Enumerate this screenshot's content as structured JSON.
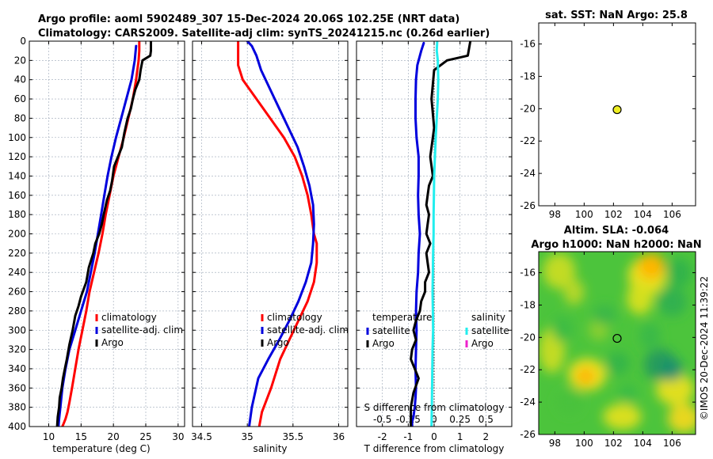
{
  "title": {
    "line1": "Argo profile: aoml 5902489_307 15-Dec-2024 20.06S 102.25E (NRT data)",
    "line2": "Climatology: CARS2009. Satellite-adj clim: synTS_20241215.nc (0.26d earlier)"
  },
  "colors": {
    "climatology": "#ff0000",
    "satellite": "#0000dd",
    "argo": "#000000",
    "sal_satellite": "#22eeee",
    "sal_argo": "#ee22cc",
    "dot": "#eeee22"
  },
  "footer": {
    "stamp": "©IMOS 20-Dec-2024 11:39:22"
  },
  "chart_data": [
    {
      "id": "temp",
      "type": "line",
      "xlabel": "temperature (deg C)",
      "ylabel": "depth (m)",
      "xlim": [
        7,
        31
      ],
      "ylim": [
        0,
        400
      ],
      "xticks": [
        10,
        15,
        20,
        25,
        30
      ],
      "yticks": [
        0,
        20,
        40,
        60,
        80,
        100,
        120,
        140,
        160,
        180,
        200,
        220,
        240,
        260,
        280,
        300,
        320,
        340,
        360,
        380,
        400
      ],
      "legend": [
        "climatology",
        "satellite-adj. clim",
        "Argo"
      ],
      "series": [
        {
          "name": "climatology",
          "color": "#ff0000",
          "x": [
            24.0,
            24.0,
            23.9,
            23.5,
            23.0,
            22.3,
            21.6,
            20.8,
            20.0,
            19.4,
            18.8,
            18.3,
            17.7,
            17.0,
            16.3,
            15.8,
            15.2,
            14.6,
            14.1,
            13.6,
            13.2,
            12.9,
            12.6,
            12.3,
            12.1
          ],
          "y": [
            0,
            10,
            20,
            40,
            60,
            80,
            100,
            120,
            140,
            160,
            180,
            200,
            220,
            240,
            260,
            280,
            300,
            320,
            340,
            360,
            375,
            385,
            392,
            397,
            400
          ]
        },
        {
          "name": "satellite-adj. clim",
          "color": "#0000dd",
          "x": [
            23.5,
            23.3,
            22.8,
            22.0,
            21.2,
            20.4,
            19.7,
            19.1,
            18.6,
            18.1,
            17.6,
            17.1,
            16.5,
            15.9,
            15.0,
            14.1,
            13.2,
            12.6,
            12.1,
            11.8,
            11.6,
            11.5
          ],
          "y": [
            5,
            20,
            40,
            60,
            80,
            100,
            120,
            140,
            160,
            180,
            200,
            220,
            240,
            260,
            280,
            300,
            320,
            340,
            360,
            380,
            392,
            400
          ]
        },
        {
          "name": "Argo",
          "color": "#000000",
          "x": [
            25.8,
            25.8,
            25.7,
            24.5,
            24.2,
            24.0,
            23.4,
            23.0,
            22.7,
            22.2,
            21.7,
            21.3,
            20.7,
            20.1,
            19.8,
            19.5,
            19.0,
            18.5,
            18.2,
            17.8,
            17.2,
            16.9,
            16.2,
            15.8,
            15.0,
            14.6,
            14.1,
            13.7,
            13.2,
            12.8,
            12.5,
            12.2,
            12.0,
            11.7,
            11.6,
            11.4,
            11.3
          ],
          "y": [
            0,
            10,
            15,
            20,
            30,
            40,
            50,
            60,
            70,
            80,
            95,
            110,
            120,
            130,
            145,
            155,
            165,
            180,
            190,
            200,
            210,
            220,
            235,
            250,
            265,
            275,
            285,
            300,
            315,
            330,
            340,
            350,
            360,
            370,
            380,
            390,
            400
          ]
        }
      ]
    },
    {
      "id": "sal",
      "type": "line",
      "xlabel": "salinity",
      "ylim": [
        0,
        400
      ],
      "xlim": [
        34.4,
        36.1
      ],
      "xticks": [
        34.5,
        35,
        35.5,
        36
      ],
      "xticklabels": [
        "34.5",
        "35",
        "35.5",
        "36"
      ],
      "legend": [
        "climatology",
        "satellite-adj. clim",
        "Argo"
      ],
      "series": [
        {
          "name": "climatology",
          "color": "#ff0000",
          "x": [
            34.9,
            34.9,
            34.9,
            34.95,
            35.1,
            35.25,
            35.4,
            35.52,
            35.6,
            35.66,
            35.7,
            35.73,
            35.76,
            35.76,
            35.73,
            35.66,
            35.56,
            35.46,
            35.36,
            35.26,
            35.16,
            35.13
          ],
          "y": [
            0,
            10,
            25,
            40,
            60,
            80,
            100,
            120,
            140,
            160,
            180,
            200,
            210,
            230,
            250,
            270,
            290,
            310,
            330,
            360,
            385,
            400
          ]
        },
        {
          "name": "satellite-adj. clim",
          "color": "#0000dd",
          "x": [
            35.0,
            35.05,
            35.1,
            35.15,
            35.25,
            35.35,
            35.45,
            35.55,
            35.62,
            35.68,
            35.72,
            35.73,
            35.72,
            35.7,
            35.64,
            35.56,
            35.46,
            35.35,
            35.23,
            35.12,
            35.05,
            35.02
          ],
          "y": [
            0,
            5,
            15,
            30,
            50,
            70,
            90,
            110,
            130,
            150,
            170,
            190,
            210,
            230,
            250,
            270,
            290,
            310,
            330,
            350,
            380,
            400
          ]
        }
      ]
    },
    {
      "id": "tdiff",
      "type": "line",
      "xlabel": "T difference from climatology",
      "xlabel_top": "S difference from climatology",
      "ylim": [
        0,
        400
      ],
      "xlim": [
        -3,
        3
      ],
      "xticks": [
        -2,
        -1,
        0,
        1,
        2
      ],
      "top_xticks": [
        -0.5,
        -0.25,
        0,
        0.25,
        0.5
      ],
      "top_xticklabels": [
        "-0.5",
        "-0.25",
        "0",
        "0.25",
        "0.5"
      ],
      "legend_left_title": "temperature",
      "legend_right_title": "salinity",
      "legend_left": [
        "satellite",
        "Argo"
      ],
      "legend_right": [
        "satellite",
        "Argo"
      ],
      "series": [
        {
          "name": "T satellite",
          "color": "#0000dd",
          "x": [
            -0.4,
            -0.5,
            -0.65,
            -0.7,
            -0.72,
            -0.72,
            -0.68,
            -0.6,
            -0.6,
            -0.62,
            -0.6,
            -0.55,
            -0.6,
            -0.62,
            -0.68,
            -0.7,
            -0.68,
            -0.7,
            -0.72,
            -0.7,
            -0.72,
            -0.75,
            -0.8,
            -0.85,
            -0.85
          ],
          "y": [
            2,
            10,
            25,
            40,
            60,
            80,
            100,
            120,
            140,
            160,
            180,
            200,
            220,
            240,
            260,
            280,
            300,
            320,
            340,
            360,
            370,
            380,
            390,
            395,
            400
          ]
        },
        {
          "name": "T Argo",
          "color": "#000000",
          "x": [
            1.4,
            1.3,
            0.5,
            0.0,
            -0.1,
            0.0,
            -0.15,
            -0.05,
            -0.2,
            -0.25,
            -0.3,
            -0.2,
            -0.25,
            -0.3,
            -0.15,
            -0.3,
            -0.25,
            -0.2,
            -0.35,
            -0.35,
            -0.5,
            -0.55,
            -0.7,
            -0.8,
            -0.7,
            -0.85,
            -0.9,
            -0.75,
            -0.6,
            -0.8,
            -0.9,
            -0.9
          ],
          "y": [
            0,
            15,
            20,
            30,
            60,
            90,
            120,
            140,
            150,
            160,
            170,
            180,
            190,
            200,
            210,
            220,
            230,
            240,
            250,
            260,
            270,
            280,
            290,
            300,
            310,
            320,
            330,
            340,
            350,
            365,
            380,
            400
          ]
        },
        {
          "name": "S satellite",
          "color": "#22eeee",
          "x": [
            0.12,
            0.1,
            0.14,
            0.16,
            0.14,
            0.1,
            0.06,
            0.03,
            0.0,
            -0.01,
            -0.02,
            -0.02,
            -0.04,
            -0.05,
            -0.06,
            -0.05,
            -0.04,
            -0.06,
            -0.07,
            -0.08,
            -0.09,
            -0.1
          ],
          "y": [
            0,
            10,
            20,
            40,
            60,
            80,
            100,
            120,
            140,
            160,
            180,
            200,
            220,
            240,
            260,
            280,
            300,
            320,
            340,
            360,
            380,
            400
          ]
        }
      ]
    },
    {
      "id": "sst_map",
      "type": "scatter",
      "title": "sat. SST: NaN Argo: 25.8",
      "xlim": [
        96.9,
        107.6
      ],
      "ylim": [
        -26,
        -14.7
      ],
      "xticks": [
        98,
        100,
        102,
        104,
        106
      ],
      "yticks": [
        -16,
        -18,
        -20,
        -22,
        -24,
        -26
      ],
      "points": [
        {
          "lon": 102.25,
          "lat": -20.06,
          "label": "Argo"
        }
      ]
    },
    {
      "id": "sla_map",
      "type": "heatmap",
      "title_line1": "Altim. SLA: -0.064",
      "title_line2": "Argo h1000: NaN h2000: NaN",
      "xlim": [
        96.9,
        107.6
      ],
      "ylim": [
        -26,
        -14.7
      ],
      "xticks": [
        98,
        100,
        102,
        104,
        106
      ],
      "yticks": [
        -16,
        -18,
        -20,
        -22,
        -24,
        -26
      ],
      "points": [
        {
          "lon": 102.25,
          "lat": -20.06,
          "label": "Argo"
        }
      ]
    }
  ]
}
